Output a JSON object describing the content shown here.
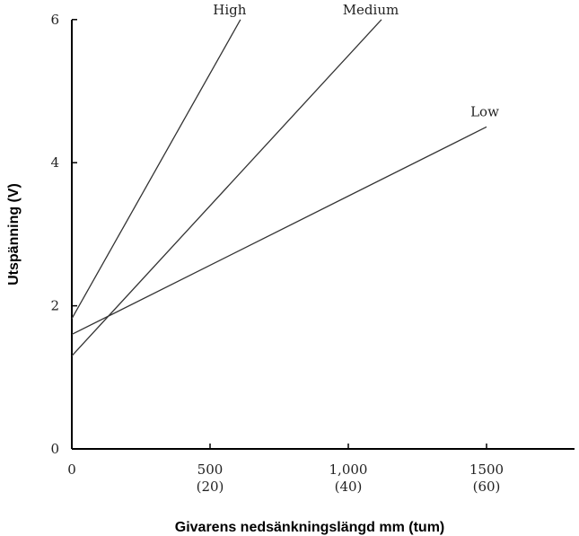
{
  "chart_data": {
    "type": "line",
    "xlabel": "Givarens nedsänkningslängd mm (tum)",
    "ylabel": "Utspänning (V)",
    "xlim": [
      0,
      1800
    ],
    "ylim": [
      0,
      6
    ],
    "grid": false,
    "legend": "none",
    "x_ticks": [
      {
        "value": 0,
        "label": "0",
        "sublabel": ""
      },
      {
        "value": 500,
        "label": "500",
        "sublabel": "(20)"
      },
      {
        "value": 1000,
        "label": "1,000",
        "sublabel": "(40)"
      },
      {
        "value": 1500,
        "label": "1500",
        "sublabel": "(60)"
      }
    ],
    "y_ticks": [
      {
        "value": 0,
        "label": "0"
      },
      {
        "value": 2,
        "label": "2"
      },
      {
        "value": 4,
        "label": "4"
      },
      {
        "value": 6,
        "label": "6"
      }
    ],
    "series": [
      {
        "name": "High",
        "x": [
          0,
          610
        ],
        "y": [
          1.82,
          6.0
        ],
        "label_at": "end-top"
      },
      {
        "name": "Medium",
        "x": [
          0,
          1120
        ],
        "y": [
          1.3,
          6.0
        ],
        "label_at": "end-top"
      },
      {
        "name": "Low",
        "x": [
          0,
          1500
        ],
        "y": [
          1.6,
          4.5
        ],
        "label_at": "end-above"
      }
    ],
    "line_color": "#333333"
  }
}
